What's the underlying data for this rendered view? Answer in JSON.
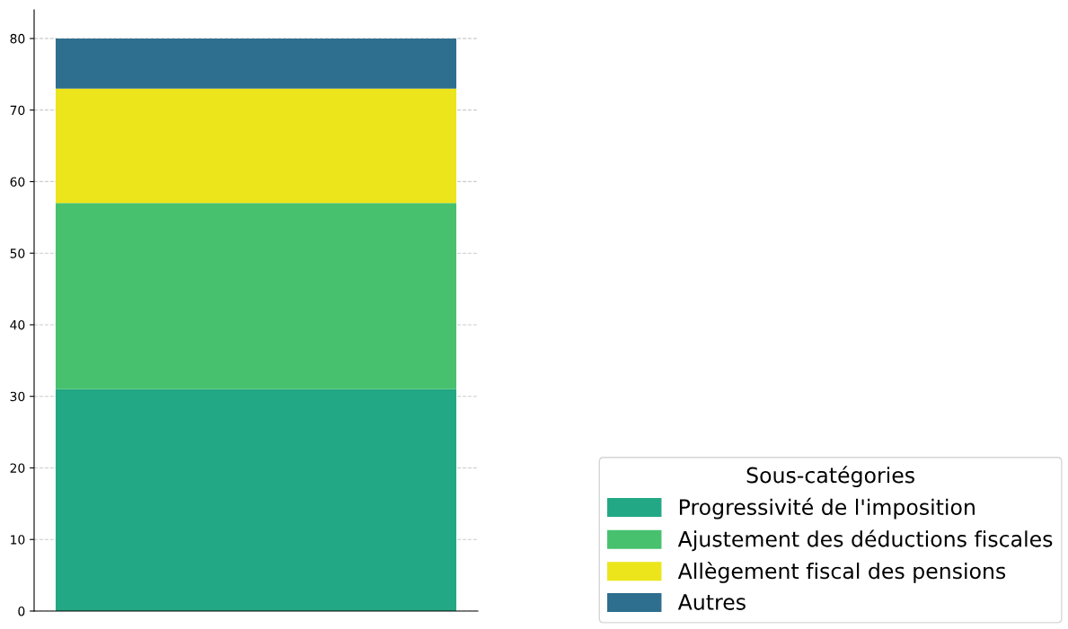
{
  "chart_data": {
    "type": "bar",
    "stacked": true,
    "categories": [
      null
    ],
    "legend_title": "Sous-catégories",
    "series": [
      {
        "name": "Progressivité de l'imposition",
        "color": "#22a884",
        "values": [
          31
        ]
      },
      {
        "name": "Ajustement des déductions fiscales",
        "color": "#47c16e",
        "values": [
          26
        ]
      },
      {
        "name": "Allègement fiscal des pensions",
        "color": "#ece51b",
        "values": [
          16
        ]
      },
      {
        "name": "Autres",
        "color": "#2e6e8e",
        "values": [
          7
        ]
      }
    ],
    "ylim": [
      0,
      84
    ],
    "yticks": [
      0,
      10,
      20,
      30,
      40,
      50,
      60,
      70,
      80
    ],
    "grid": "y",
    "legend": "bottom right"
  }
}
